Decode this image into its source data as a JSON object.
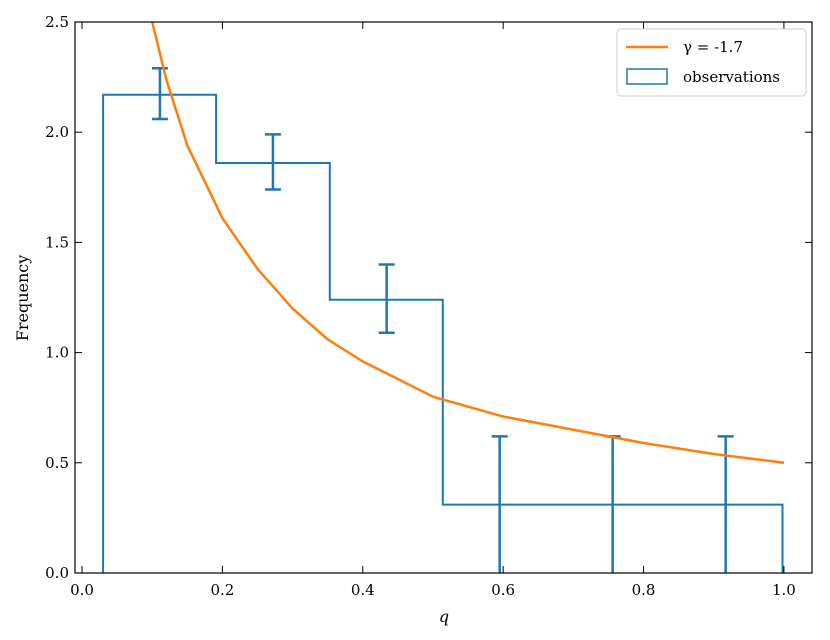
{
  "chart_data": {
    "type": "histogram",
    "xlabel": "q",
    "ylabel": "Frequency",
    "xlim": [
      -0.01,
      1.04
    ],
    "ylim": [
      0,
      2.5
    ],
    "x_ticks": [
      0.0,
      0.2,
      0.4,
      0.6,
      0.8,
      1.0
    ],
    "x_tick_labels": [
      "0.0",
      "0.2",
      "0.4",
      "0.6",
      "0.8",
      "1.0"
    ],
    "y_ticks": [
      0.0,
      0.5,
      1.0,
      1.5,
      2.0,
      2.5
    ],
    "y_tick_labels": [
      "0.0",
      "0.5",
      "1.0",
      "1.5",
      "2.0",
      "2.5"
    ],
    "grid": false,
    "legend_position": "top-right",
    "series": [
      {
        "name": "observations",
        "kind": "step-histogram",
        "color": "#1f77b4",
        "bin_edges": [
          0.03,
          0.191,
          0.353,
          0.514,
          0.675,
          0.837,
          0.998
        ],
        "values": [
          2.17,
          1.86,
          1.24,
          0.31,
          0.31,
          0.31
        ],
        "error_x": [
          0.111,
          0.272,
          0.434,
          0.595,
          0.756,
          0.917
        ],
        "error_low": [
          2.06,
          1.74,
          1.09,
          0.0,
          0.0,
          0.0
        ],
        "error_high": [
          2.29,
          1.99,
          1.4,
          0.62,
          0.62,
          0.62
        ]
      },
      {
        "name": "γ = -1.7",
        "kind": "line",
        "color": "#ff7f0e",
        "x": [
          0.1,
          0.12,
          0.15,
          0.2,
          0.25,
          0.3,
          0.35,
          0.4,
          0.5,
          0.6,
          0.7,
          0.8,
          0.9,
          1.0
        ],
        "y": [
          2.5,
          2.24,
          1.94,
          1.61,
          1.38,
          1.2,
          1.06,
          0.96,
          0.8,
          0.71,
          0.65,
          0.59,
          0.54,
          0.5
        ]
      }
    ],
    "legend": {
      "line_label": "γ = -1.7",
      "hist_label": "observations"
    }
  }
}
